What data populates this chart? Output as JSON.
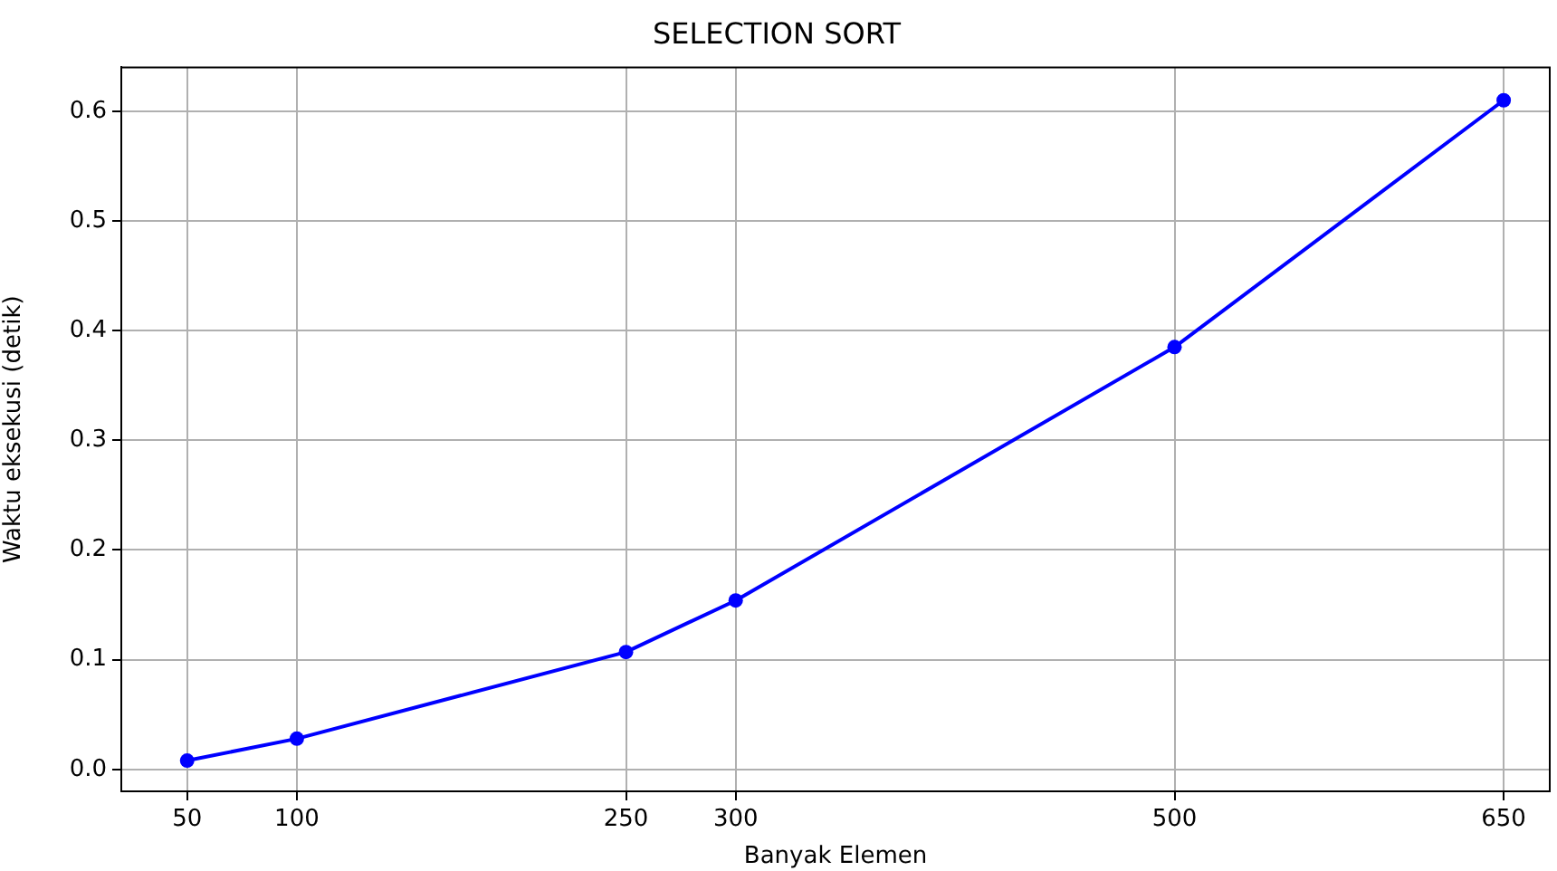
{
  "chart_data": {
    "type": "line",
    "title": "SELECTION SORT",
    "xlabel": "Banyak Elemen",
    "ylabel": "Waktu eksekusi (detik)",
    "x": [
      50,
      100,
      250,
      300,
      500,
      650
    ],
    "series": [
      {
        "color": "#0000ff",
        "values": [
          0.008,
          0.028,
          0.107,
          0.154,
          0.385,
          0.61
        ]
      }
    ],
    "xlim": [
      20,
      671
    ],
    "xticks": [
      50,
      100,
      250,
      300,
      500,
      650
    ],
    "ylim": [
      -0.02,
      0.64
    ],
    "yticks": [
      {
        "value": 0,
        "label": "0.0"
      },
      0.1,
      0.2,
      0.3,
      0.4,
      0.5,
      0.6
    ],
    "grid": true,
    "marker": "circle",
    "line_style": "solid",
    "legend": false
  }
}
